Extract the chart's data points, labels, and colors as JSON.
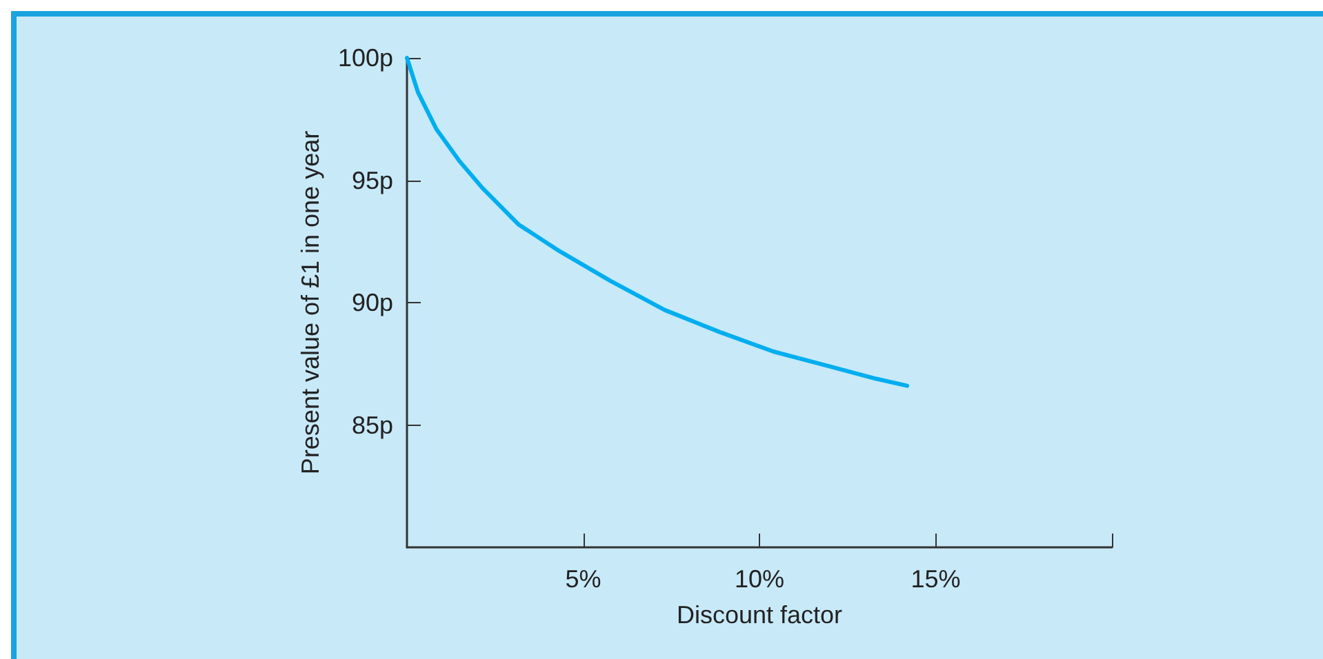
{
  "chart_data": {
    "type": "line",
    "xlabel": "Discount factor",
    "ylabel": "Present value of £1 in one year",
    "x": [
      0,
      0.31,
      0.83,
      1.48,
      2.13,
      3.16,
      4.33,
      5.76,
      7.31,
      8.87,
      10.4,
      11.98,
      13.28,
      14.19
    ],
    "values": [
      100,
      98.6,
      97.1,
      95.8,
      94.7,
      93.2,
      92.1,
      90.9,
      89.7,
      88.8,
      88.0,
      87.4,
      86.9,
      86.6
    ],
    "color": "#00aeef",
    "xlim": [
      0,
      20
    ],
    "xticks": [
      {
        "value": 5,
        "label": "5%"
      },
      {
        "value": 10,
        "label": "10%"
      },
      {
        "value": 15,
        "label": "15%"
      },
      {
        "value": 20,
        "label": null
      }
    ],
    "ylim": [
      80,
      100
    ],
    "yticks": [
      {
        "value": 85,
        "label": "85p"
      },
      {
        "value": 90,
        "label": "90p"
      },
      {
        "value": 95,
        "label": "95p"
      },
      {
        "value": 100,
        "label": "100p"
      }
    ],
    "grid": false,
    "marker": "none",
    "line_style": "solid"
  }
}
